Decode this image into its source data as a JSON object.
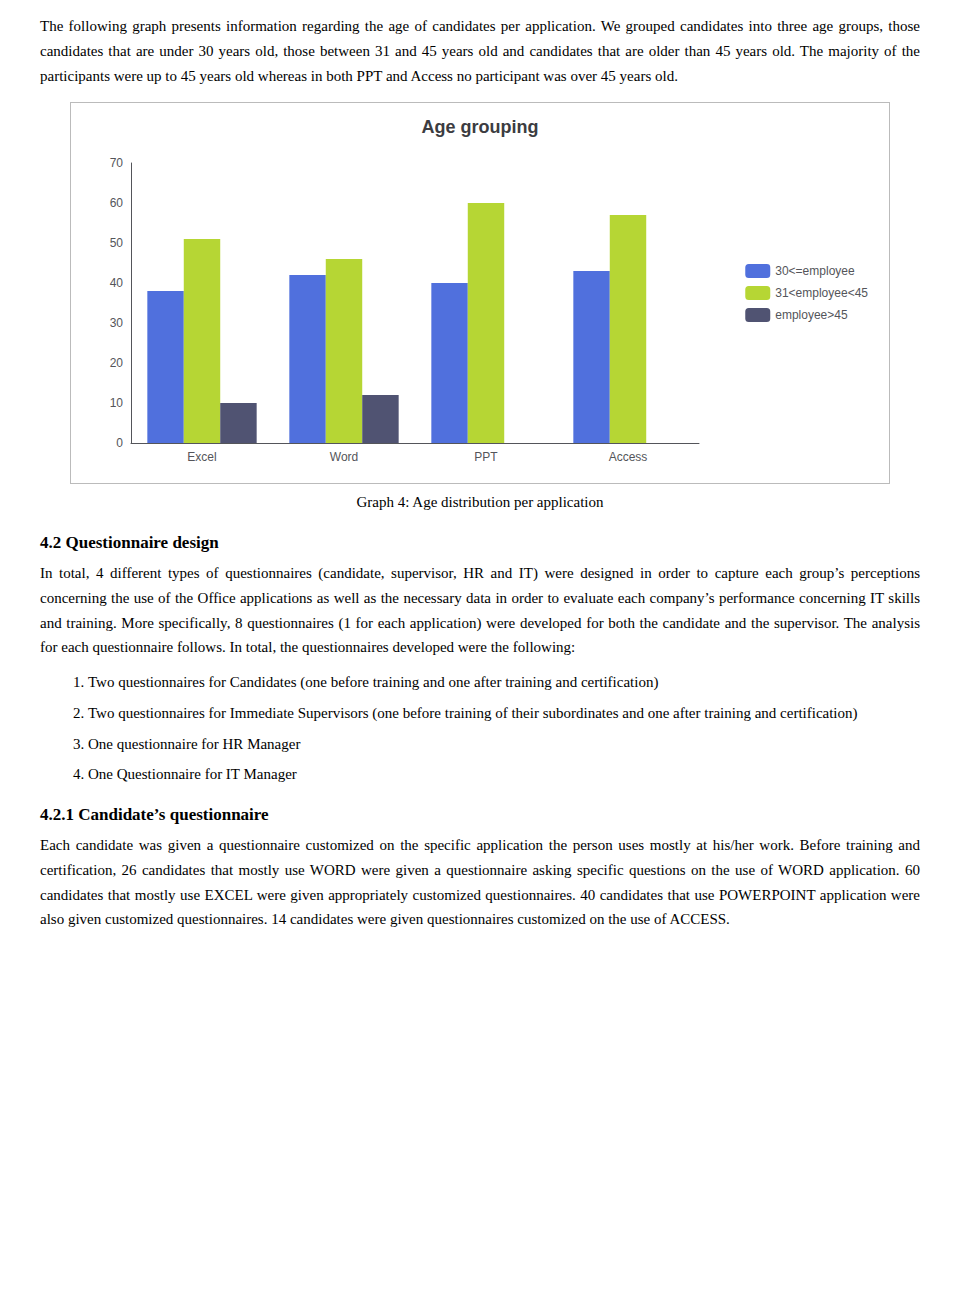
{
  "chart_data": {
    "type": "bar",
    "title": "Age grouping",
    "categories": [
      "Excel",
      "Word",
      "PPT",
      "Access"
    ],
    "series": [
      {
        "name": "30<=employee",
        "values": [
          38,
          42,
          40,
          43
        ]
      },
      {
        "name": "31<employee<45",
        "values": [
          51,
          46,
          60,
          57
        ]
      },
      {
        "name": "employee>45",
        "values": [
          10,
          12,
          0,
          0
        ]
      }
    ],
    "ylim": [
      0,
      70
    ],
    "yticks": [
      0,
      10,
      20,
      30,
      40,
      50,
      60,
      70
    ],
    "grid": false,
    "legend": "right"
  },
  "page_text": {
    "para1": "The following graph presents information regarding the age of candidates per application. We grouped candidates into three age groups, those candidates that are under 30 years old, those between 31 and 45 years old and candidates that are older than 45 years old. The majority of the participants were up to 45 years old whereas in both PPT and Access no participant was over 45 years old.",
    "caption": "Graph 4: Age distribution per application",
    "heading42": "4.2 Questionnaire design",
    "para42": "In total, 4 different types of questionnaires (candidate, supervisor, HR and IT) were designed in order to capture each group’s perceptions concerning the use of the Office applications as well as the necessary data in order to evaluate each company’s performance concerning IT skills and training. More specifically, 8 questionnaires (1 for each application) were developed for both the candidate and the supervisor.  The analysis for each questionnaire follows. In total, the questionnaires developed were the following:",
    "list_items": [
      "Two questionnaires for Candidates (one before training and one after training and certification)",
      "Two questionnaires for Immediate Supervisors (one before training of their subordinates and one after training and certification)",
      "One questionnaire for HR Manager",
      "One Questionnaire for IT Manager"
    ],
    "heading421": "4.2.1 Candidate’s questionnaire",
    "para421": "Each candidate was given a questionnaire customized on the specific application the person uses mostly at his/her work. Before training and certification, 26 candidates that mostly use WORD were given a questionnaire asking specific questions on the use of WORD application. 60 candidates that mostly use EXCEL were given appropriately customized questionnaires. 40 candidates that use POWERPOINT application were also given customized questionnaires. 14 candidates were given questionnaires customized on the use of ACCESS."
  }
}
